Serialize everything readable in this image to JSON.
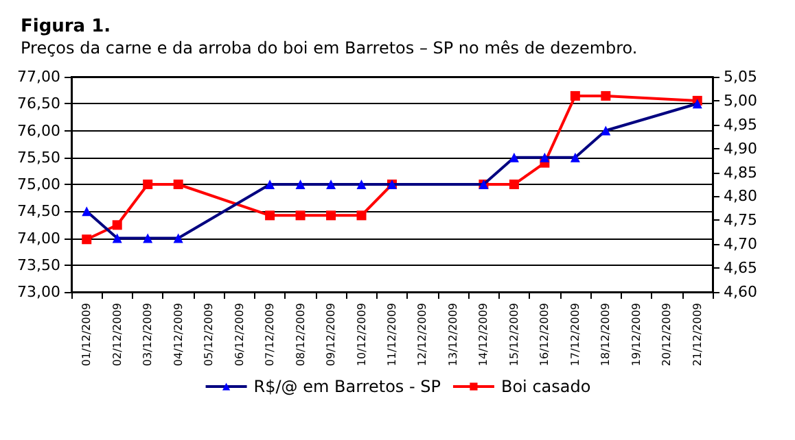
{
  "chart_data": {
    "type": "line",
    "title": "Figura 1.",
    "subtitle": "Preços da carne e da arroba do boi em Barretos – SP no mês de dezembro.",
    "categories": [
      "01/12/2009",
      "02/12/2009",
      "03/12/2009",
      "04/12/2009",
      "05/12/2009",
      "06/12/2009",
      "07/12/2009",
      "08/12/2009",
      "09/12/2009",
      "10/12/2009",
      "11/12/2009",
      "12/12/2009",
      "13/12/2009",
      "14/12/2009",
      "15/12/2009",
      "16/12/2009",
      "17/12/2009",
      "18/12/2009",
      "19/12/2009",
      "20/12/2009",
      "21/12/2009"
    ],
    "series": [
      {
        "name": "R$/@ em Barretos - SP",
        "color": "#000080",
        "marker": "triangle",
        "values": [
          74.5,
          74.0,
          74.0,
          74.0,
          null,
          null,
          75.0,
          75.0,
          75.0,
          75.0,
          75.0,
          null,
          null,
          75.0,
          75.5,
          75.5,
          75.5,
          76.0,
          null,
          null,
          76.5
        ]
      },
      {
        "name": "Boi casado",
        "color": "#ff0000",
        "marker": "square",
        "axis": "y2",
        "values": [
          4.71,
          4.74,
          4.825,
          4.825,
          null,
          null,
          4.76,
          4.76,
          4.76,
          4.76,
          4.825,
          null,
          null,
          4.825,
          4.825,
          4.87,
          5.01,
          5.01,
          null,
          null,
          5.0
        ]
      }
    ],
    "ylim": [
      73,
      77
    ],
    "yticks": [
      {
        "value": 73,
        "label": "73,00"
      },
      {
        "value": 73.5,
        "label": "73,50"
      },
      {
        "value": 74,
        "label": "74,00"
      },
      {
        "value": 74.5,
        "label": "74,50"
      },
      {
        "value": 75,
        "label": "75,00"
      },
      {
        "value": 75.5,
        "label": "75,50"
      },
      {
        "value": 76,
        "label": "76,00"
      },
      {
        "value": 76.5,
        "label": "76,50"
      },
      {
        "value": 77,
        "label": "77,00"
      }
    ],
    "y2lim": [
      4.6,
      5.05
    ],
    "y2ticks": [
      {
        "value": 4.6,
        "label": "4,60"
      },
      {
        "value": 4.65,
        "label": "4,65"
      },
      {
        "value": 4.7,
        "label": "4,70"
      },
      {
        "value": 4.75,
        "label": "4,75"
      },
      {
        "value": 4.8,
        "label": "4,80"
      },
      {
        "value": 4.85,
        "label": "4,85"
      },
      {
        "value": 4.9,
        "label": "4,90"
      },
      {
        "value": 4.95,
        "label": "4,95"
      },
      {
        "value": 5.0,
        "label": "5,00"
      },
      {
        "value": 5.05,
        "label": "5,05"
      }
    ],
    "grid": "y",
    "legend": "bottom"
  }
}
